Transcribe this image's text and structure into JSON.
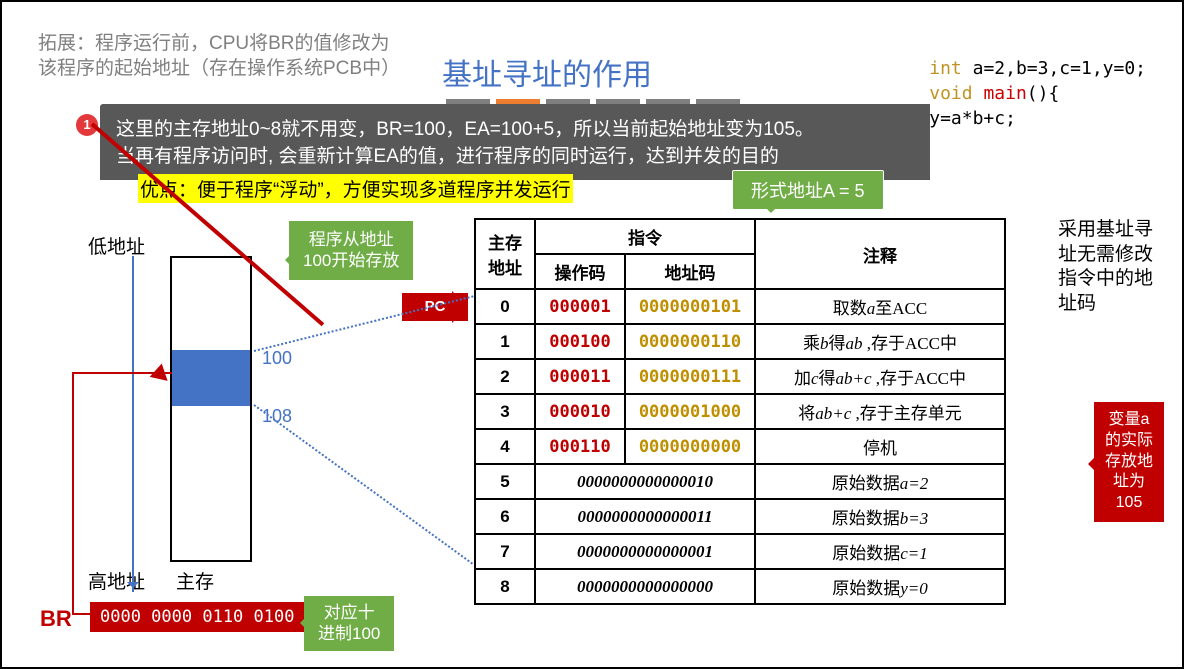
{
  "top_note_line1": "拓展：程序运行前，CPU将BR的值修改为",
  "top_note_line2": "该程序的起始地址（存在操作系统PCB中）",
  "title": "基址寻址的作用",
  "code": {
    "l1_kw": "int ",
    "l1_rest": "a=2,b=3,c=1,y=0;",
    "l2_kw": "void ",
    "l2_fn": "main",
    "l2_rest": "(){",
    "l3": "    y=a*b+c;"
  },
  "palette": [
    "#7F7F7F",
    "#ED7D31",
    "#7F7F7F",
    "#7F7F7F",
    "#7F7F7F",
    "#7F7F7F"
  ],
  "banner_badge": "1",
  "banner_l1": "这里的主存地址0~8就不用变，BR=100，EA=100+5，所以当前起始地址变为105。",
  "banner_l2": "当再有程序访问时, 会重新计算EA的值，进行程序的同时运行，达到并发的目的",
  "advantage": "优点：便于程序“浮动”，方便实现多道程序并发运行",
  "form_addr": "形式地址A = 5",
  "side_note_right": "采用基址寻址无需修改指令中的地址码",
  "var_a_callout": "变量a的实际存放地址为105",
  "low_addr": "低地址",
  "high_addr": "高地址",
  "main_mem": "主存",
  "mem_100": "100",
  "mem_108": "108",
  "addr100_callout_l1": "程序从地址",
  "addr100_callout_l2": "100开始存放",
  "pc_label": "PC",
  "br_label": "BR",
  "br_bits": "0000 0000 0110 0100",
  "br_callout_l1": "对应十",
  "br_callout_l2": "进制100",
  "table_headers": {
    "addr": "主存地址",
    "instr": "指令",
    "opcode": "操作码",
    "addrcode": "地址码",
    "annot": "注释"
  },
  "rows": [
    {
      "addr": "0",
      "op": "000001",
      "ac": "0000000101",
      "annot_html": "取数<i>a</i>至ACC"
    },
    {
      "addr": "1",
      "op": "000100",
      "ac": "0000000110",
      "annot_html": "乘<i>b</i>得<i>ab</i> ,存于ACC中"
    },
    {
      "addr": "2",
      "op": "000011",
      "ac": "0000000111",
      "annot_html": "加<i>c</i>得<i>ab+c</i> ,存于ACC中"
    },
    {
      "addr": "3",
      "op": "000010",
      "ac": "0000001000",
      "annot_html": "将<i>ab+c</i> ,存于主存单元"
    },
    {
      "addr": "4",
      "op": "000110",
      "ac": "0000000000",
      "annot_html": "停机"
    },
    {
      "addr": "5",
      "data": "0000000000000010",
      "annot_html": "原始数据<i>a=2</i>"
    },
    {
      "addr": "6",
      "data": "0000000000000011",
      "annot_html": "原始数据<i>b=3</i>"
    },
    {
      "addr": "7",
      "data": "0000000000000001",
      "annot_html": "原始数据<i>c=1</i>"
    },
    {
      "addr": "8",
      "data": "0000000000000000",
      "annot_html": "原始数据<i>y=0</i>"
    }
  ],
  "col_widths": {
    "addr": 60,
    "op": 90,
    "ac": 130,
    "annot": 250
  },
  "colors": {
    "title": "#4472C4",
    "banner_bg": "#585858",
    "badge": "#E3393C",
    "highlight": "#FFFF00",
    "green": "#70AD47",
    "red": "#C00000",
    "opcode": "#C00000",
    "addrcode": "#BF8F00",
    "blue": "#4472C4"
  }
}
